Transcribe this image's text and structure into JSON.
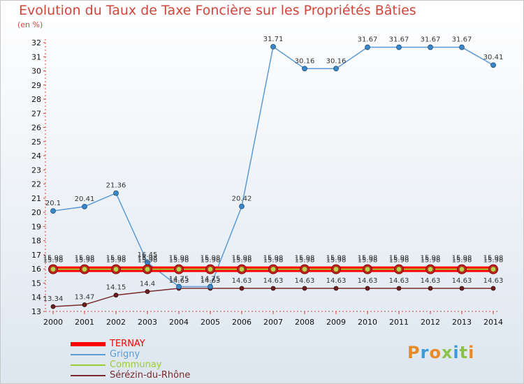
{
  "colors": {
    "title": "#d2453a",
    "axis": "#d2453a",
    "ternay": "#ff0000",
    "grigny": "#5b9bd5",
    "communay": "#9acd32",
    "sererin": "#7a2a2a",
    "marker_grigny": "#3a87c8",
    "marker_sererin": "#6b1f1f",
    "marker_communay_fill": "#b5d64a",
    "marker_communay_stroke": "#9a3b1a"
  },
  "logo": {
    "text": "Proxiti"
  },
  "chart_data": {
    "type": "line",
    "title": "Evolution du Taux de Taxe Foncière sur les Propriétés Bâties",
    "ylabel": "(en %)",
    "xlabel": "",
    "ylim": [
      13,
      32
    ],
    "y_ticks": [
      "13",
      "14",
      "15",
      "16",
      "17",
      "18",
      "19",
      "20",
      "21",
      "22",
      "23",
      "24",
      "25",
      "26",
      "27",
      "28",
      "29",
      "30",
      "31",
      "32"
    ],
    "x": [
      "2000",
      "2001",
      "2002",
      "2003",
      "2004",
      "2005",
      "2006",
      "2007",
      "2008",
      "2009",
      "2010",
      "2011",
      "2012",
      "2013",
      "2014"
    ],
    "series": [
      {
        "name": "TERNAY",
        "color": "#ff0000",
        "values": [
          15.98,
          15.98,
          15.98,
          15.98,
          15.98,
          15.98,
          15.98,
          15.98,
          15.98,
          15.98,
          15.98,
          15.98,
          15.98,
          15.98,
          15.98
        ],
        "labels": [
          "15.98",
          "15.98",
          "15.98",
          "15.98",
          "15.98",
          "15.98",
          "15.98",
          "15.98",
          "15.98",
          "15.98",
          "15.98",
          "15.98",
          "15.98",
          "15.98",
          "15.98"
        ]
      },
      {
        "name": "Grigny",
        "color": "#5b9bd5",
        "values": [
          20.1,
          20.41,
          21.36,
          16.45,
          14.75,
          14.75,
          20.42,
          31.71,
          30.16,
          30.16,
          31.67,
          31.67,
          31.67,
          31.67,
          30.41
        ],
        "labels": [
          "20.1",
          "20.41",
          "21.36",
          "16.45",
          "14.75",
          "14.75",
          "20.42",
          "31.71",
          "30.16",
          "30.16",
          "31.67",
          "31.67",
          "31.67",
          "31.67",
          "30.41"
        ]
      },
      {
        "name": "Communay",
        "color": "#9acd32",
        "values": [
          15.98,
          15.98,
          15.98,
          15.98,
          15.98,
          15.98,
          15.98,
          15.98,
          15.98,
          15.98,
          15.98,
          15.98,
          15.98,
          15.98,
          15.98
        ],
        "labels": [
          "15.98",
          "15.98",
          "15.98",
          "15.98",
          "15.98",
          "15.98",
          "15.98",
          "15.98",
          "15.98",
          "15.98",
          "15.98",
          "15.98",
          "15.98",
          "15.98",
          "15.98"
        ]
      },
      {
        "name": "Sérézin-du-Rhône",
        "color": "#7a2a2a",
        "values": [
          13.34,
          13.47,
          14.15,
          14.4,
          14.63,
          14.63,
          14.63,
          14.63,
          14.63,
          14.63,
          14.63,
          14.63,
          14.63,
          14.63,
          14.63
        ],
        "labels": [
          "13.34",
          "13.47",
          "14.15",
          "14.4",
          "14.63",
          "14.63",
          "14.63",
          "14.63",
          "14.63",
          "14.63",
          "14.63",
          "14.63",
          "14.63",
          "14.63",
          "14.63"
        ]
      }
    ],
    "legend": [
      "TERNAY",
      "Grigny",
      "Communay",
      "Sérézin-du-Rhône"
    ],
    "legend_position": "bottom-left",
    "grid": false
  }
}
